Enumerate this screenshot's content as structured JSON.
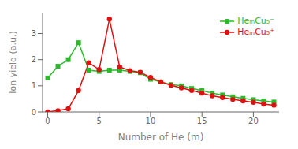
{
  "chart_data": {
    "type": "line",
    "x": [
      0,
      1,
      2,
      3,
      4,
      5,
      6,
      7,
      8,
      9,
      10,
      11,
      12,
      13,
      14,
      15,
      16,
      17,
      18,
      19,
      20,
      21,
      22
    ],
    "series": [
      {
        "name": "HeₘCu₅⁻",
        "color": "#2db82d",
        "marker": "square",
        "values": [
          1.3,
          1.75,
          2.0,
          2.65,
          1.6,
          1.55,
          1.6,
          1.6,
          1.55,
          1.5,
          1.25,
          1.15,
          1.05,
          1.0,
          0.9,
          0.82,
          0.72,
          0.65,
          0.58,
          0.52,
          0.47,
          0.42,
          0.38
        ]
      },
      {
        "name": "HeₘCu₅⁺",
        "color": "#dd1111",
        "marker": "circle",
        "values": [
          0.0,
          0.05,
          0.12,
          0.82,
          1.88,
          1.62,
          3.55,
          1.72,
          1.58,
          1.52,
          1.32,
          1.15,
          1.02,
          0.92,
          0.82,
          0.72,
          0.62,
          0.55,
          0.48,
          0.42,
          0.37,
          0.3,
          0.26
        ]
      }
    ],
    "xlabel": "Number of He (m)",
    "ylabel": "Ion yield (a.u.)",
    "xlim": [
      -0.5,
      22.5
    ],
    "ylim": [
      0,
      3.8
    ],
    "xticks": [
      0,
      5,
      10,
      15,
      20
    ],
    "yticks": [
      0,
      1,
      2,
      3
    ],
    "grid": false,
    "legend": "upper right"
  }
}
